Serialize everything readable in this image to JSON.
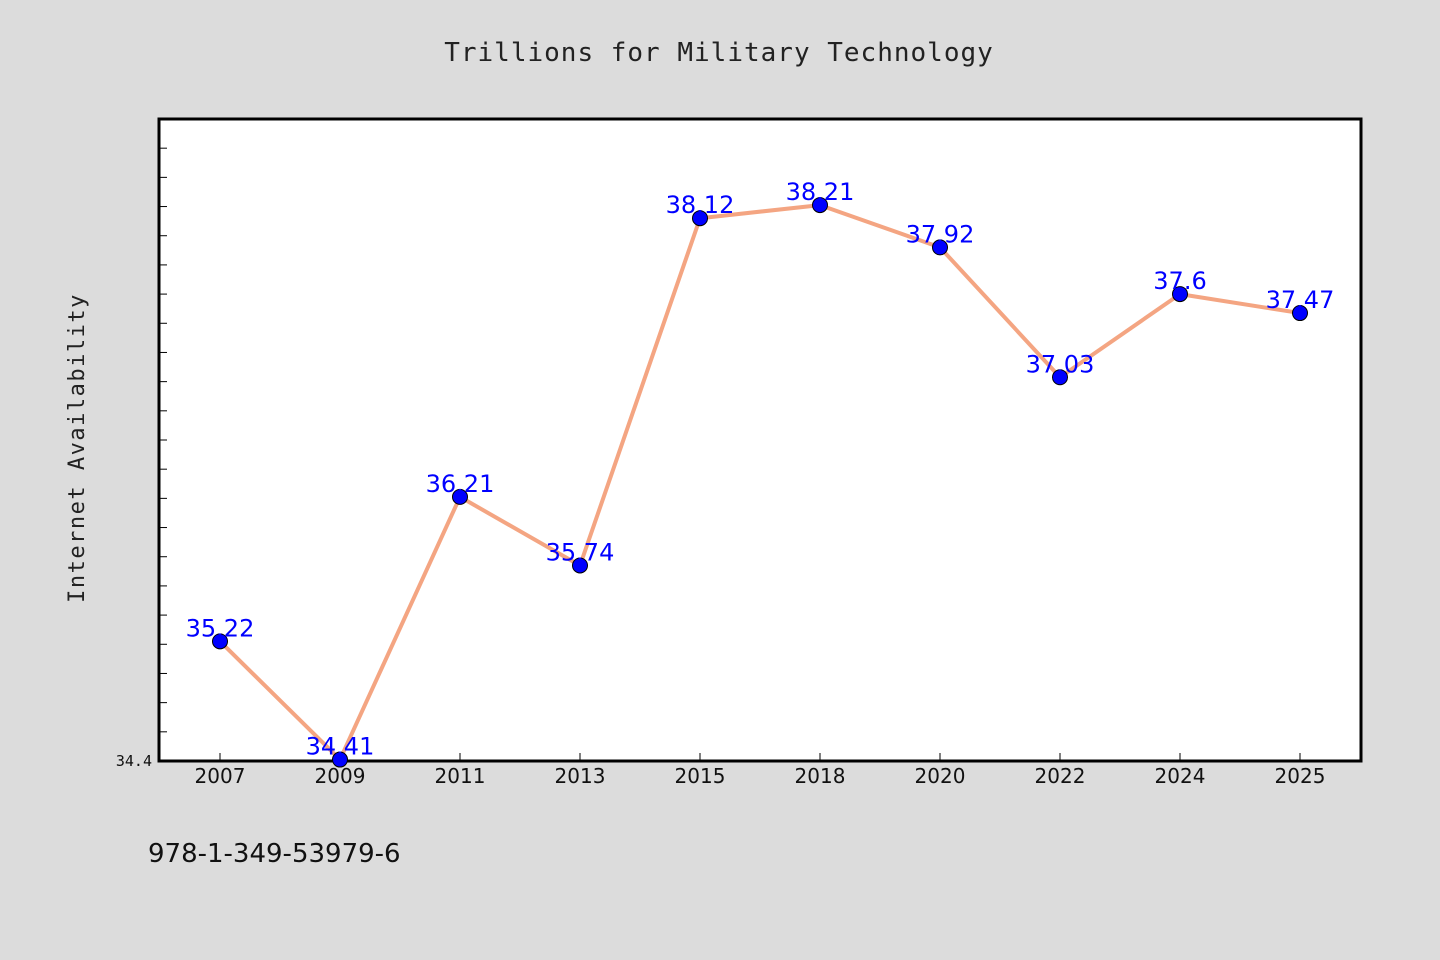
{
  "chart_data": {
    "type": "line",
    "title": "Trillions for Military Technology",
    "xlabel": "",
    "ylabel": "Internet Availability",
    "categories": [
      "2007",
      "2009",
      "2011",
      "2013",
      "2015",
      "2018",
      "2020",
      "2022",
      "2024",
      "2025"
    ],
    "series": [
      {
        "values": [
          35.22,
          34.41,
          36.21,
          35.74,
          38.12,
          38.21,
          37.92,
          37.03,
          37.6,
          37.47
        ],
        "labels": [
          "35.22",
          "34.41",
          "36.21",
          "35.74",
          "38.12",
          "38.21",
          "37.92",
          "37.03",
          "37.6",
          "37.47"
        ]
      }
    ],
    "ylim": [
      34.4,
      38.8
    ],
    "yticks_labeled": [
      "34.4"
    ],
    "grid": false,
    "legend": "none",
    "colors": {
      "line": "#f4a582",
      "marker": "#0000ff",
      "data_label": "#0000ff",
      "plot_background": "#ffffff",
      "page_background": "#dcdcdc"
    }
  },
  "footer": {
    "isbn": "978-1-349-53979-6"
  }
}
